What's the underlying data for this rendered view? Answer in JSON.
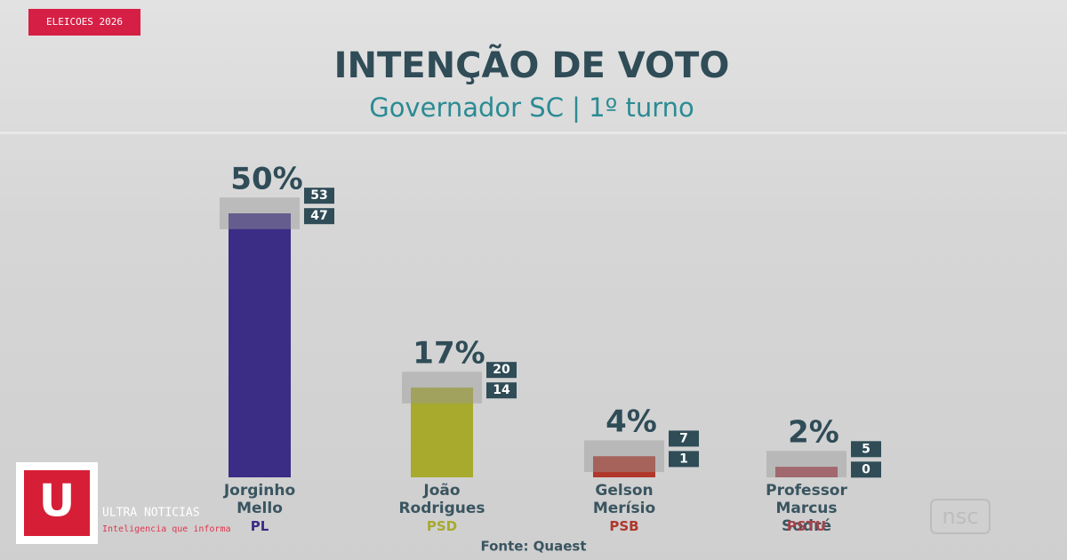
{
  "badge": "ELEICOES 2026",
  "source": "Fonte: Quaest",
  "watermark": "nsc",
  "brand": {
    "logo": "U",
    "name": "ULTRA NOTICIAS",
    "tagline": "Inteligencia que informa"
  },
  "chart_data": {
    "type": "bar",
    "title": "INTENÇÃO DE VOTO",
    "subtitle": "Governador SC | 1º turno",
    "categories": [
      "Jorginho Mello",
      "João Rodrigues",
      "Gelson Merísio",
      "Professor Marcus Sodré"
    ],
    "parties": [
      "PL",
      "PSD",
      "PSB",
      "PSTU"
    ],
    "values": [
      50,
      17,
      4,
      2
    ],
    "value_labels": [
      "50%",
      "17%",
      "4%",
      "2%"
    ],
    "upper": [
      53,
      20,
      7,
      5
    ],
    "lower": [
      47,
      14,
      1,
      0
    ],
    "colors": [
      "#3b2d86",
      "#a7aa2c",
      "#b0372a",
      "#a8404a"
    ],
    "ylim": [
      0,
      50
    ]
  }
}
